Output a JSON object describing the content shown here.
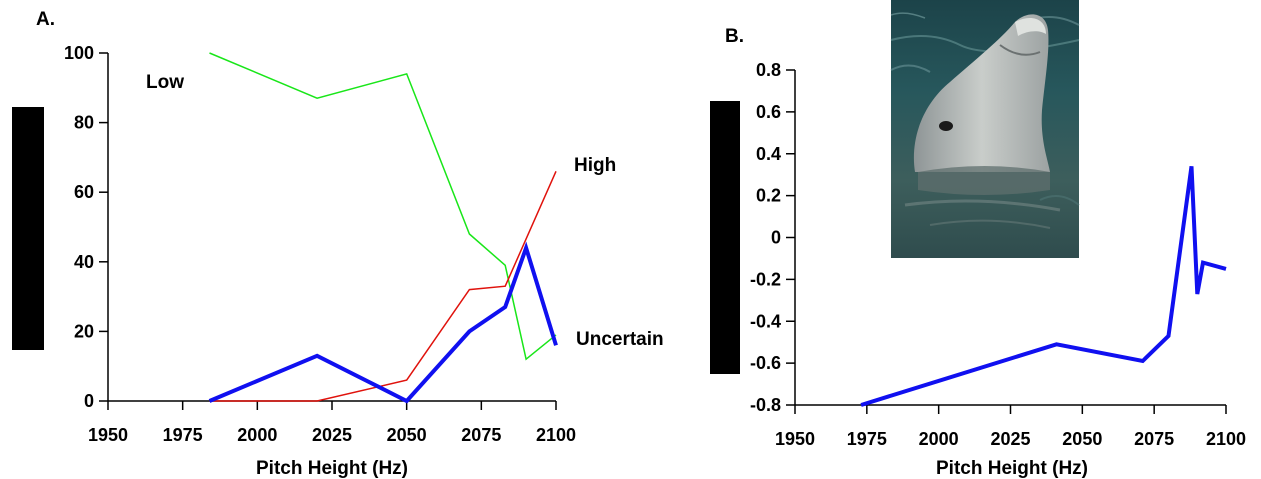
{
  "panel_a_label": "A.",
  "panel_b_label": "B.",
  "photo_alt": "dolphin-photo",
  "colors": {
    "low": "#19e619",
    "high": "#e0120c",
    "uncertain": "#1010f0",
    "axis": "#000000"
  },
  "chart_data": [
    {
      "id": "A",
      "type": "line",
      "title": "",
      "xlabel": "Pitch Height (Hz)",
      "ylabel": "",
      "xlim": [
        1950,
        2100
      ],
      "ylim": [
        0,
        100
      ],
      "xticks": [
        1950,
        1975,
        2000,
        2025,
        2050,
        2075,
        2100
      ],
      "yticks": [
        0,
        20,
        40,
        60,
        80,
        100
      ],
      "grid": false,
      "legend": "none",
      "series": [
        {
          "name": "Low",
          "color": "#19e619",
          "width": 1.5,
          "x": [
            1984,
            2020,
            2050,
            2071,
            2083,
            2090,
            2100
          ],
          "y": [
            100,
            87,
            94,
            48,
            39,
            12,
            19
          ]
        },
        {
          "name": "High",
          "color": "#e0120c",
          "width": 1.5,
          "x": [
            1984,
            2020,
            2050,
            2071,
            2083,
            2100
          ],
          "y": [
            0,
            0,
            6,
            32,
            33,
            66
          ]
        },
        {
          "name": "Uncertain",
          "color": "#1010f0",
          "width": 4,
          "x": [
            1984,
            2020,
            2050,
            2071,
            2083,
            2090,
            2100
          ],
          "y": [
            0,
            13,
            0,
            20,
            27,
            44,
            16
          ]
        }
      ]
    },
    {
      "id": "B",
      "type": "line",
      "title": "",
      "xlabel": "Pitch Height (Hz)",
      "ylabel": "",
      "xlim": [
        1950,
        2100
      ],
      "ylim": [
        -0.8,
        0.8
      ],
      "xticks": [
        1950,
        1975,
        2000,
        2025,
        2050,
        2075,
        2100
      ],
      "yticks": [
        -0.8,
        -0.6,
        -0.4,
        -0.2,
        0,
        0.2,
        0.4,
        0.6,
        0.8
      ],
      "grid": false,
      "legend": "none",
      "series": [
        {
          "name": "",
          "color": "#1010f0",
          "width": 4,
          "x": [
            1973,
            2041,
            2071,
            2080,
            2088,
            2090,
            2092,
            2100
          ],
          "y": [
            -0.8,
            -0.51,
            -0.59,
            -0.47,
            0.34,
            -0.27,
            -0.12,
            -0.15
          ]
        }
      ]
    }
  ]
}
